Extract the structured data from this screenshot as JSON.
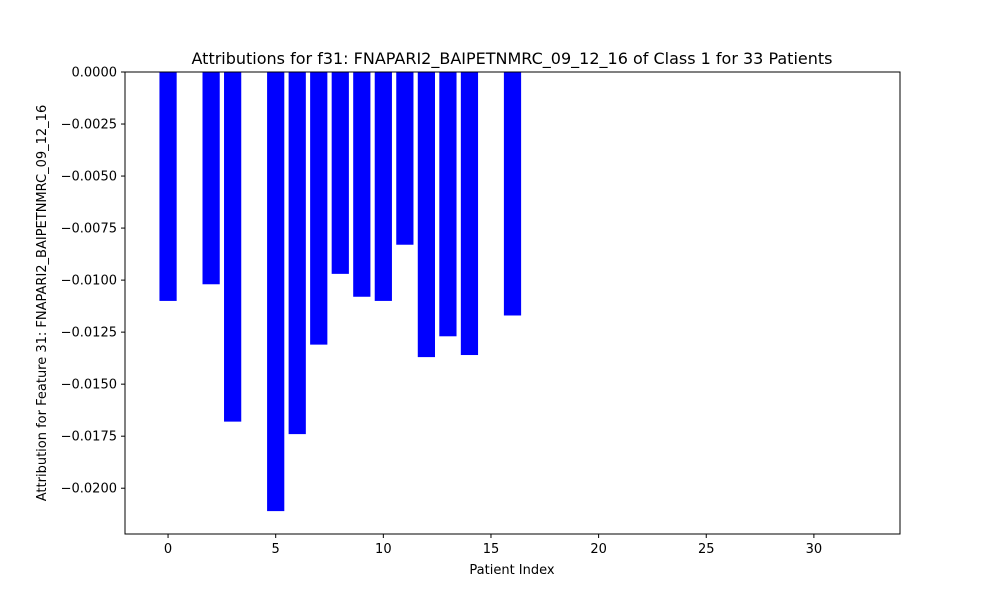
{
  "chart_data": {
    "type": "bar",
    "title": "Attributions for f31: FNAPARI2_BAIPETNMRC_09_12_16 of Class 1 for 33 Patients",
    "xlabel": "Patient Index",
    "ylabel": "Attribution for Feature 31: FNAPARI2_BAIPETNMRC_09_12_16",
    "xlim": [
      -2,
      34
    ],
    "ylim": [
      -0.0222,
      0.0
    ],
    "x_ticks": [
      0,
      5,
      10,
      15,
      20,
      25,
      30
    ],
    "y_ticks": [
      0.0,
      -0.0025,
      -0.005,
      -0.0075,
      -0.01,
      -0.0125,
      -0.015,
      -0.0175,
      -0.02
    ],
    "y_tick_labels": [
      "0.0000",
      "−0.0025",
      "−0.0050",
      "−0.0075",
      "−0.0100",
      "−0.0125",
      "−0.0150",
      "−0.0175",
      "−0.0200"
    ],
    "x_tick_labels": [
      "0",
      "5",
      "10",
      "15",
      "20",
      "25",
      "30"
    ],
    "grid": false,
    "bar_color": "#0000ff",
    "x": [
      0,
      1,
      2,
      3,
      4,
      5,
      6,
      7,
      8,
      9,
      10,
      11,
      12,
      13,
      14,
      15,
      16,
      17,
      18,
      19,
      20,
      21,
      22,
      23,
      24,
      25,
      26,
      27,
      28,
      29,
      30,
      31,
      32
    ],
    "values": [
      -0.011,
      0,
      -0.0102,
      -0.0168,
      0,
      -0.0211,
      -0.0174,
      -0.0131,
      -0.0097,
      -0.0108,
      -0.011,
      -0.0083,
      -0.0137,
      -0.0127,
      -0.0136,
      0,
      -0.0117,
      0,
      0,
      0,
      0,
      0,
      0,
      0,
      0,
      0,
      0,
      0,
      0,
      0,
      0,
      0,
      0
    ]
  }
}
